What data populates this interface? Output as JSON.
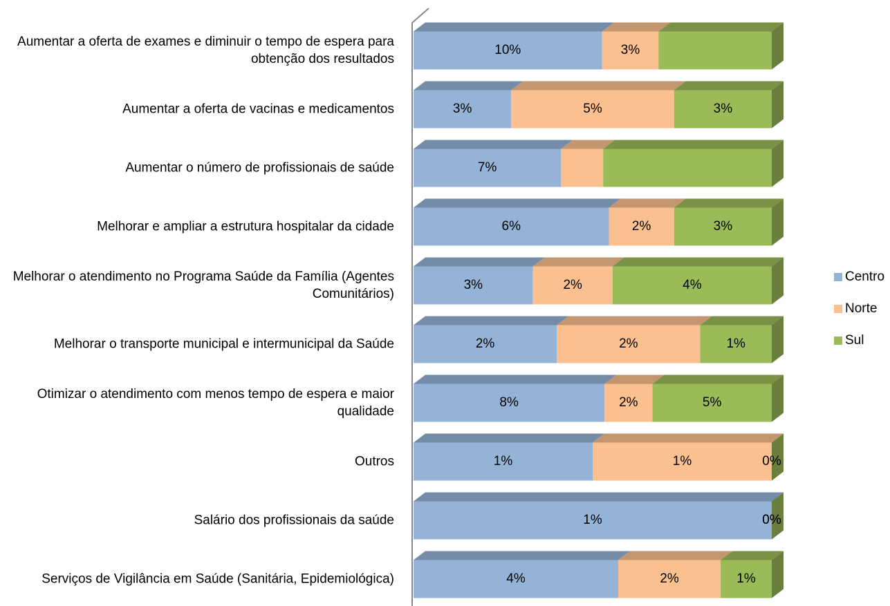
{
  "chart_data": {
    "type": "bar",
    "stacking": "percent",
    "categories": [
      "Aumentar a oferta de exames e diminuir o tempo de espera para obtenção dos resultados",
      "Aumentar a oferta de vacinas e medicamentos",
      "Aumentar o número de profissionais de saúde",
      "Melhorar e ampliar a estrutura hospitalar da cidade",
      "Melhorar o atendimento no Programa Saúde da Família (Agentes Comunitários)",
      "Melhorar o transporte municipal e intermunicipal da Saúde",
      "Otimizar o atendimento com menos tempo de espera e maior qualidade",
      "Outros",
      "Salário dos profissionais da saúde",
      "Serviços de Vigilância em Saúde (Sanitária, Epidemiológica)"
    ],
    "series": [
      {
        "name": "Centro",
        "color": "#95b3d7",
        "values": [
          10,
          3,
          7,
          6,
          3,
          2,
          8,
          1,
          1,
          4
        ],
        "value_labels": [
          "10%",
          "3%",
          "7%",
          "6%",
          "3%",
          "2%",
          "8%",
          "1%",
          "1%",
          "4%"
        ]
      },
      {
        "name": "Norte",
        "color": "#fac090",
        "values": [
          3,
          5,
          2,
          2,
          2,
          2,
          2,
          1,
          0,
          2
        ],
        "value_labels": [
          "3%",
          "5%",
          null,
          "2%",
          "2%",
          "2%",
          "2%",
          "1%",
          "0%",
          "2%"
        ]
      },
      {
        "name": "Sul",
        "color": "#9bbb59",
        "values": [
          6,
          3,
          8,
          3,
          4,
          1,
          5,
          0,
          0,
          1
        ],
        "value_labels": [
          null,
          "3%",
          null,
          "3%",
          "4%",
          "1%",
          "5%",
          "0%",
          "0%",
          "1%"
        ]
      }
    ],
    "legend": "right"
  }
}
